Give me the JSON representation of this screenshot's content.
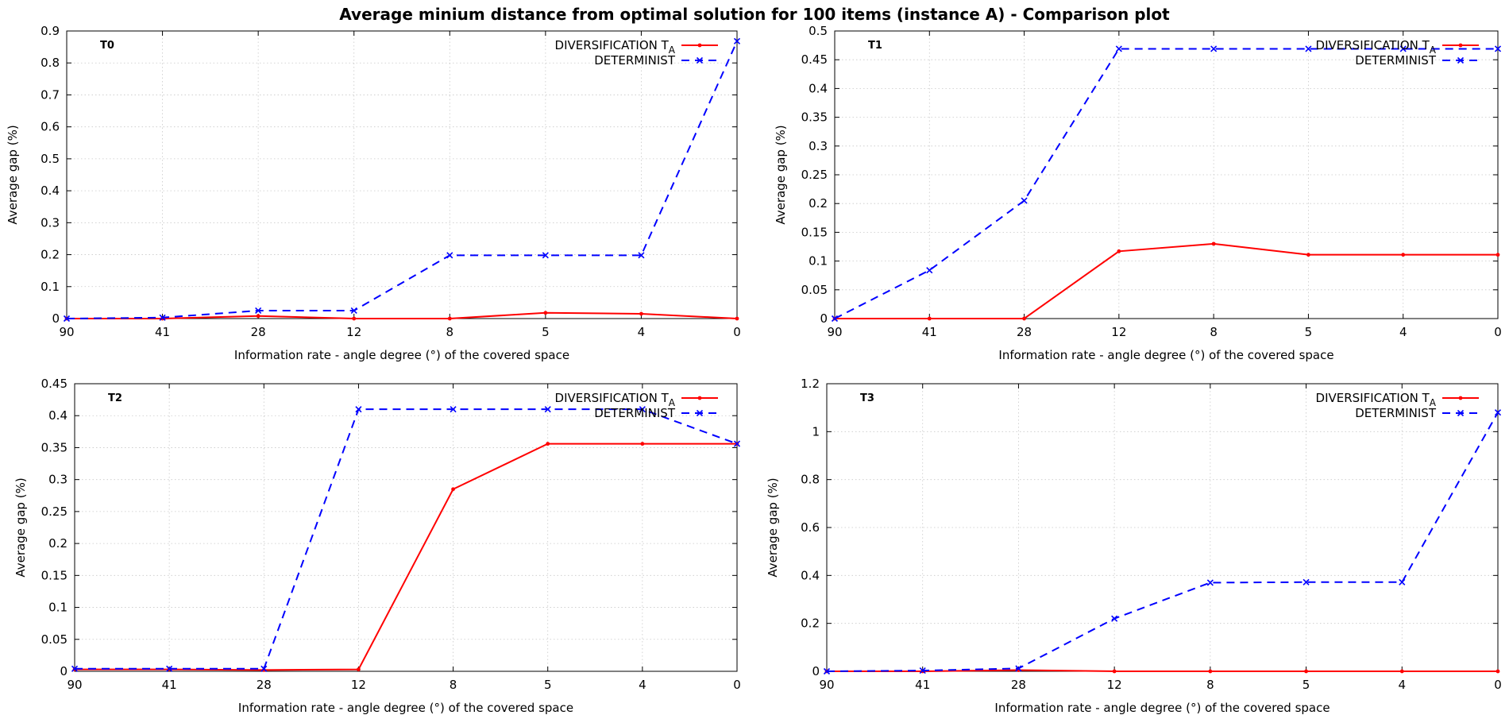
{
  "title": "Average minium distance from optimal solution for 100 items (instance A)  - Comparison plot",
  "chart_data": [
    {
      "type": "line",
      "panel_label": "T0",
      "categories": [
        "90",
        "41",
        "28",
        "12",
        "8",
        "5",
        "4",
        "0"
      ],
      "xlabel": "Information rate - angle degree (°)  of the covered space",
      "ylabel": "Average gap (%)",
      "ylim": [
        0,
        0.9
      ],
      "yticks": [
        0,
        0.1,
        0.2,
        0.3,
        0.4,
        0.5,
        0.6,
        0.7,
        0.8,
        0.9
      ],
      "grid": true,
      "legend_position": "top-right",
      "series": [
        {
          "name": "DIVERSIFICATION T",
          "name_sub": "A",
          "color": "#ff0000",
          "dash": "solid",
          "marker": "dot",
          "values": [
            0,
            0,
            0.008,
            0,
            0,
            0.018,
            0.015,
            0
          ]
        },
        {
          "name": "DETERMINIST",
          "color": "#0000ff",
          "dash": "dashed",
          "marker": "x",
          "values": [
            0,
            0.003,
            0.025,
            0.025,
            0.198,
            0.198,
            0.198,
            0.868
          ]
        }
      ]
    },
    {
      "type": "line",
      "panel_label": "T1",
      "categories": [
        "90",
        "41",
        "28",
        "12",
        "8",
        "5",
        "4",
        "0"
      ],
      "xlabel": "Information rate - angle degree (°)  of the covered space",
      "ylabel": "Average gap (%)",
      "ylim": [
        0,
        0.5
      ],
      "yticks": [
        0,
        0.05,
        0.1,
        0.15,
        0.2,
        0.25,
        0.3,
        0.35,
        0.4,
        0.45,
        0.5
      ],
      "grid": true,
      "legend_position": "top-right",
      "series": [
        {
          "name": "DIVERSIFICATION T",
          "name_sub": "A",
          "color": "#ff0000",
          "dash": "solid",
          "marker": "dot",
          "values": [
            0,
            0,
            0,
            0.117,
            0.13,
            0.111,
            0.111,
            0.111
          ]
        },
        {
          "name": "DETERMINIST",
          "color": "#0000ff",
          "dash": "dashed",
          "marker": "x",
          "values": [
            0,
            0.084,
            0.205,
            0.469,
            0.469,
            0.469,
            0.469,
            0.469
          ]
        }
      ]
    },
    {
      "type": "line",
      "panel_label": "T2",
      "categories": [
        "90",
        "41",
        "28",
        "12",
        "8",
        "5",
        "4",
        "0"
      ],
      "xlabel": "Information rate - angle degree (°)  of the covered space",
      "ylabel": "Average gap (%)",
      "ylim": [
        0,
        0.45
      ],
      "yticks": [
        0,
        0.05,
        0.1,
        0.15,
        0.2,
        0.25,
        0.3,
        0.35,
        0.4,
        0.45
      ],
      "grid": true,
      "legend_position": "top-right",
      "series": [
        {
          "name": "DIVERSIFICATION T",
          "name_sub": "A",
          "color": "#ff0000",
          "dash": "solid",
          "marker": "dot",
          "values": [
            0.003,
            0.003,
            0.002,
            0.003,
            0.285,
            0.356,
            0.356,
            0.356
          ]
        },
        {
          "name": "DETERMINIST",
          "color": "#0000ff",
          "dash": "dashed",
          "marker": "x",
          "values": [
            0.004,
            0.004,
            0.004,
            0.41,
            0.41,
            0.41,
            0.41,
            0.356
          ]
        }
      ]
    },
    {
      "type": "line",
      "panel_label": "T3",
      "categories": [
        "90",
        "41",
        "28",
        "12",
        "8",
        "5",
        "4",
        "0"
      ],
      "xlabel": "Information rate - angle degree (°)  of the covered space",
      "ylabel": "Average gap (%)",
      "ylim": [
        0,
        1.2
      ],
      "yticks": [
        0,
        0.2,
        0.4,
        0.6,
        0.8,
        1,
        1.2
      ],
      "grid": true,
      "legend_position": "top-right",
      "series": [
        {
          "name": "DIVERSIFICATION T",
          "name_sub": "A",
          "color": "#ff0000",
          "dash": "solid",
          "marker": "dot",
          "values": [
            0,
            0,
            0.005,
            0,
            0,
            0,
            0,
            0
          ]
        },
        {
          "name": "DETERMINIST",
          "color": "#0000ff",
          "dash": "dashed",
          "marker": "x",
          "values": [
            0,
            0.003,
            0.012,
            0.22,
            0.37,
            0.372,
            0.372,
            1.08
          ]
        }
      ]
    }
  ]
}
